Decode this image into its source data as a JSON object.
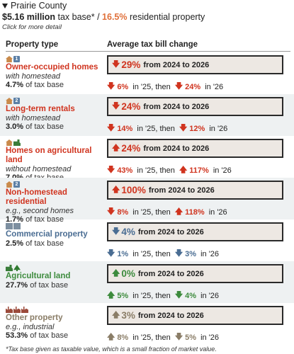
{
  "header": {
    "county": "Prairie County",
    "tax_base": "$5.16 million",
    "tax_base_suffix": " tax base* / ",
    "residential_pct": "16.5%",
    "residential_suffix": " residential property",
    "click_hint": "Click for more detail"
  },
  "columns": {
    "left": "Property type",
    "right": "Average tax bill change"
  },
  "rows": [
    {
      "title": "Owner-occupied homes",
      "subtitle": "with homestead",
      "share": "4.7%",
      "share_suffix": " of tax base",
      "big_dir": "down",
      "big_change": "29%",
      "big_range": "from 2024 to 2026",
      "s1_dir": "down",
      "s1": "6%",
      "mid": " in '25, then ",
      "s2_dir": "down",
      "s2": "24%",
      "end": " in '26",
      "icons": [
        "house-icon",
        "number-1-icon"
      ],
      "color": "#d0341f"
    },
    {
      "title": "Long-term rentals",
      "subtitle": "with homestead",
      "share": "3.0%",
      "share_suffix": " of tax base",
      "big_dir": "down",
      "big_change": "24%",
      "big_range": "from 2024 to 2026",
      "s1_dir": "down",
      "s1": "14%",
      "mid": " in '25, then ",
      "s2_dir": "down",
      "s2": "12%",
      "end": " in '26",
      "icons": [
        "house-icon",
        "number-2-icon"
      ],
      "color": "#d0341f"
    },
    {
      "title": "Homes on agricultural land",
      "subtitle": "without homestead",
      "share": "7.0%",
      "share_suffix": " of tax base",
      "big_dir": "up",
      "big_change": "24%",
      "big_range": "from 2024 to 2026",
      "s1_dir": "down",
      "s1": "43%",
      "mid": " in '25, then ",
      "s2_dir": "up",
      "s2": "117%",
      "end": " in '26",
      "icons": [
        "house-icon",
        "tractor-icon"
      ],
      "color": "#d0341f"
    },
    {
      "title": "Non-homestead residential",
      "subtitle": "e.g., second homes",
      "share": "1.7%",
      "share_suffix": " of tax base",
      "big_dir": "up",
      "big_change": "100%",
      "big_range": "from 2024 to 2026",
      "s1_dir": "down",
      "s1": "8%",
      "mid": " in '25, then ",
      "s2_dir": "up",
      "s2": "118%",
      "end": " in '26",
      "icons": [
        "house-icon",
        "number-2-icon"
      ],
      "color": "#d0341f"
    },
    {
      "title": "Commercial property",
      "subtitle": "",
      "share": "2.5%",
      "share_suffix": " of tax base",
      "big_dir": "down",
      "big_change": "4%",
      "big_range": "from 2024 to 2026",
      "s1_dir": "down",
      "s1": "1%",
      "mid": " in '25, then ",
      "s2_dir": "down",
      "s2": "3%",
      "end": " in '26",
      "icons": [
        "office-building-icon",
        "office-building-icon"
      ],
      "color": "#4a6d93"
    },
    {
      "title": "Agricultural land",
      "subtitle": "",
      "share": "27.7%",
      "share_suffix": " of tax base",
      "big_dir": "up",
      "big_change": "0%",
      "big_range": "from 2024 to 2026",
      "s1_dir": "up",
      "s1": "5%",
      "mid": " in '25, then ",
      "s2_dir": "down",
      "s2": "4%",
      "end": " in '26",
      "icons": [
        "tractor-icon",
        "tree-icon"
      ],
      "color": "#3d8b3d"
    },
    {
      "title": "Other property",
      "subtitle": "e.g., industrial",
      "share": "53.3%",
      "share_suffix": " of tax base",
      "big_dir": "up",
      "big_change": "3%",
      "big_range": "from 2024 to 2026",
      "s1_dir": "up",
      "s1": "8%",
      "mid": " in '25, then ",
      "s2_dir": "down",
      "s2": "5%",
      "end": " in '26",
      "icons": [
        "factory-icon",
        "fuel-barrel-icon",
        "factory-icon"
      ],
      "color": "#8a7d67"
    }
  ],
  "footnote": "*Tax base given as taxable value, which is a small fraction of market value."
}
